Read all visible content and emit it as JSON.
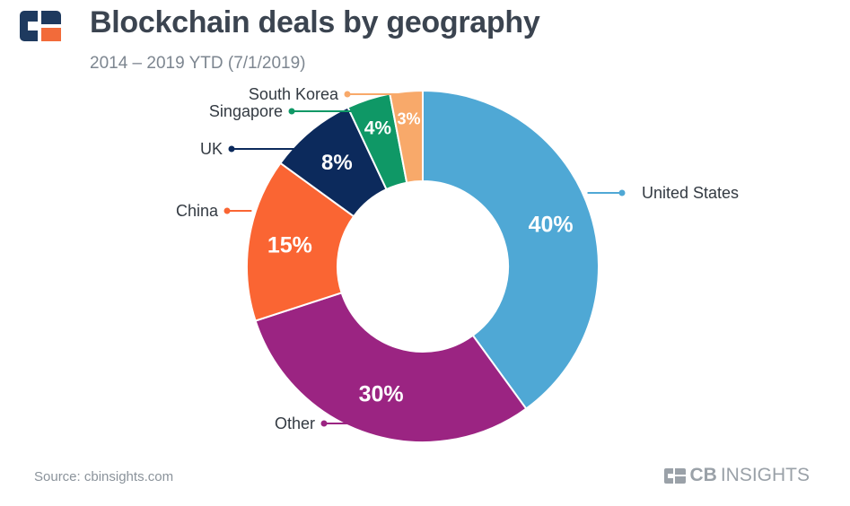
{
  "header": {
    "title": "Blockchain deals by geography",
    "subtitle": "2014 – 2019 YTD (7/1/2019)"
  },
  "footer": {
    "source": "Source: cbinsights.com",
    "brand_bold": "CB",
    "brand_light": "INSIGHTS"
  },
  "colors": {
    "title": "#3b4450",
    "logo_dark": "#1e3a5f",
    "logo_accent": "#f26b3a"
  },
  "chart_data": {
    "type": "pie",
    "variant": "donut",
    "title": "Blockchain deals by geography",
    "subtitle": "2014 – 2019 YTD (7/1/2019)",
    "unit": "%",
    "slices": [
      {
        "label": "United States",
        "value": 40,
        "display": "40%",
        "color": "#4fa8d5"
      },
      {
        "label": "Other",
        "value": 30,
        "display": "30%",
        "color": "#9b2482"
      },
      {
        "label": "China",
        "value": 15,
        "display": "15%",
        "color": "#fa6533"
      },
      {
        "label": "UK",
        "value": 8,
        "display": "8%",
        "color": "#0c2a5c"
      },
      {
        "label": "Singapore",
        "value": 4,
        "display": "4%",
        "color": "#0f9866"
      },
      {
        "label": "South Korea",
        "value": 3,
        "display": "3%",
        "color": "#f8a96a"
      }
    ]
  }
}
